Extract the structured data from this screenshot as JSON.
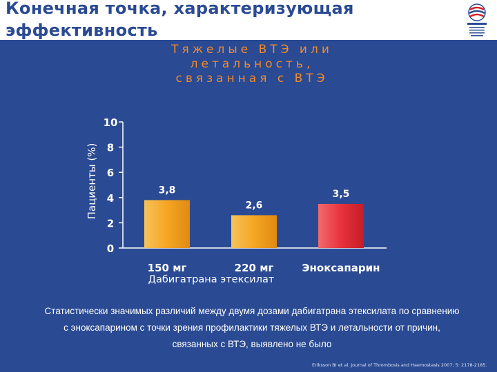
{
  "slide": {
    "title": "Конечная точка, характеризующая эффективность",
    "note": "Статистически значимых различий между двумя дозами дабигатрана этексилата по сравнению с эноксапарином  с точки зрения профилактики тяжелых ВТЭ и летальности от причин, связанных с ВТЭ, выявлено не было",
    "citation": "Eriksson BI et al. Journal of Thrombosis and Haemostasis 2007; 5: 2178-2185."
  },
  "colors": {
    "background": "#2a4a93",
    "title": "#2a4a93",
    "heading": "#f28a2a",
    "bar_dabigatran": "#f5a623",
    "bar_enoxaparin": "#e8323c"
  },
  "chart_data": {
    "type": "bar",
    "title": "Тяжелые ВТЭ или летальность, связанная с ВТЭ",
    "ylabel": "Пациенты (%)",
    "xlabel": "",
    "ylim": [
      0,
      10
    ],
    "yticks": [
      0,
      2,
      4,
      6,
      8,
      10
    ],
    "categories": [
      "150 мг",
      "220 мг",
      "Эноксапарин"
    ],
    "values": [
      3.8,
      2.6,
      3.5
    ],
    "value_labels": [
      "3,8",
      "2,6",
      "3,5"
    ],
    "group_label": "Дабигатрана этексилат",
    "bar_colors": [
      "#f5a623",
      "#f5a623",
      "#e8323c"
    ],
    "grid": false
  }
}
